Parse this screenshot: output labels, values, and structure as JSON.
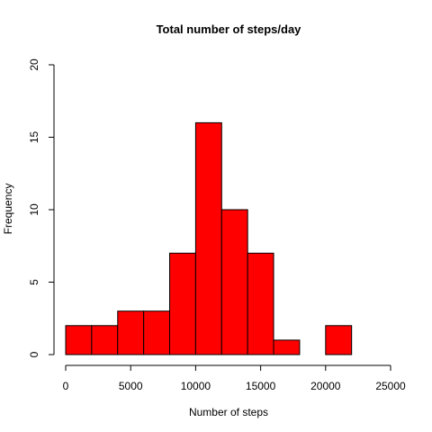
{
  "chart_data": {
    "type": "bar",
    "title": "Total number of steps/day",
    "xlabel": "Number of steps",
    "ylabel": "Frequency",
    "bin_width": 2000,
    "bins": [
      {
        "from": 0,
        "to": 2000,
        "count": 2
      },
      {
        "from": 2000,
        "to": 4000,
        "count": 2
      },
      {
        "from": 4000,
        "to": 6000,
        "count": 3
      },
      {
        "from": 6000,
        "to": 8000,
        "count": 3
      },
      {
        "from": 8000,
        "to": 10000,
        "count": 7
      },
      {
        "from": 10000,
        "to": 12000,
        "count": 16
      },
      {
        "from": 12000,
        "to": 14000,
        "count": 10
      },
      {
        "from": 14000,
        "to": 16000,
        "count": 7
      },
      {
        "from": 16000,
        "to": 18000,
        "count": 1
      },
      {
        "from": 18000,
        "to": 20000,
        "count": 0
      },
      {
        "from": 20000,
        "to": 22000,
        "count": 2
      }
    ],
    "xlim": [
      0,
      25000
    ],
    "ylim": [
      0,
      20
    ],
    "xticks": [
      0,
      5000,
      10000,
      15000,
      20000,
      25000
    ],
    "yticks": [
      0,
      5,
      10,
      15,
      20
    ],
    "xtick_labels": [
      "0",
      "5000",
      "10000",
      "15000",
      "20000",
      "25000"
    ],
    "ytick_labels": [
      "0",
      "5",
      "10",
      "15",
      "20"
    ],
    "bar_color": "#ff0000",
    "bar_border_color": "#000000",
    "grid": false,
    "legend": "none"
  }
}
